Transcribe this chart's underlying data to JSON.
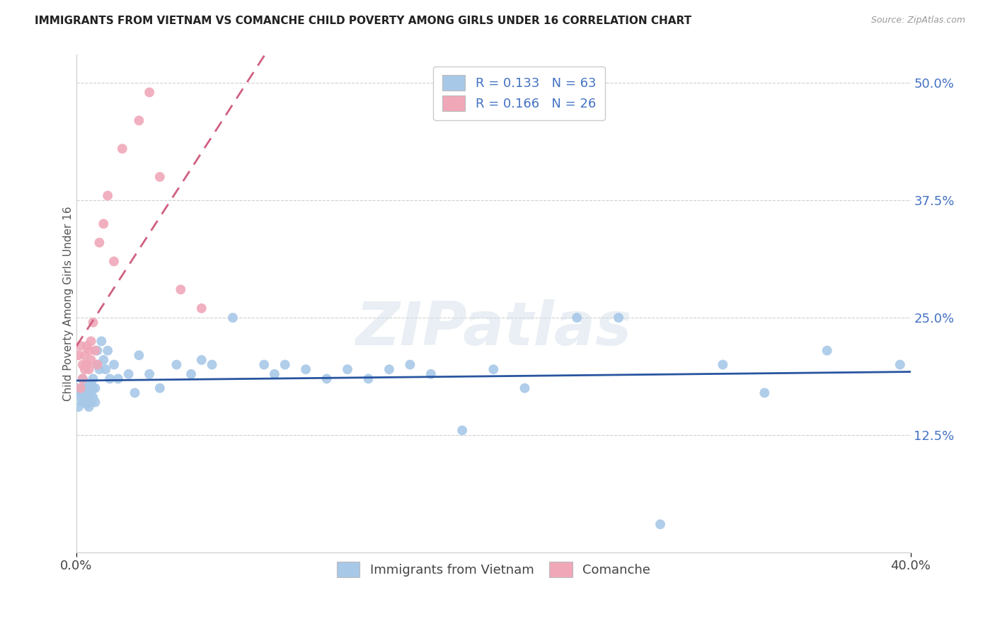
{
  "title": "IMMIGRANTS FROM VIETNAM VS COMANCHE CHILD POVERTY AMONG GIRLS UNDER 16 CORRELATION CHART",
  "source": "Source: ZipAtlas.com",
  "ylabel": "Child Poverty Among Girls Under 16",
  "ytick_labels": [
    "12.5%",
    "25.0%",
    "37.5%",
    "50.0%"
  ],
  "ytick_values": [
    0.125,
    0.25,
    0.375,
    0.5
  ],
  "xmin": 0.0,
  "xmax": 0.4,
  "ymin": 0.0,
  "ymax": 0.53,
  "legend1_label": "R = 0.133   N = 63",
  "legend2_label": "R = 0.166   N = 26",
  "legend_bottom1": "Immigrants from Vietnam",
  "legend_bottom2": "Comanche",
  "color_blue": "#a8c8e8",
  "color_pink": "#f0a8b8",
  "color_blue_line": "#2855a0",
  "color_pink_line": "#d06080",
  "color_pink_line_dashed": "#c0a0b0",
  "watermark": "ZIPatlas",
  "blue_x": [
    0.001,
    0.001,
    0.002,
    0.002,
    0.003,
    0.003,
    0.003,
    0.004,
    0.004,
    0.005,
    0.005,
    0.005,
    0.006,
    0.006,
    0.006,
    0.007,
    0.007,
    0.007,
    0.008,
    0.008,
    0.008,
    0.009,
    0.009,
    0.01,
    0.01,
    0.011,
    0.012,
    0.013,
    0.014,
    0.015,
    0.016,
    0.018,
    0.02,
    0.025,
    0.028,
    0.03,
    0.035,
    0.04,
    0.048,
    0.055,
    0.06,
    0.065,
    0.075,
    0.09,
    0.095,
    0.1,
    0.11,
    0.12,
    0.13,
    0.14,
    0.15,
    0.16,
    0.17,
    0.185,
    0.2,
    0.215,
    0.24,
    0.26,
    0.28,
    0.31,
    0.33,
    0.36,
    0.395
  ],
  "blue_y": [
    0.175,
    0.155,
    0.165,
    0.17,
    0.185,
    0.175,
    0.16,
    0.172,
    0.162,
    0.18,
    0.17,
    0.158,
    0.175,
    0.165,
    0.155,
    0.18,
    0.17,
    0.16,
    0.175,
    0.185,
    0.165,
    0.175,
    0.16,
    0.2,
    0.215,
    0.195,
    0.225,
    0.205,
    0.195,
    0.215,
    0.185,
    0.2,
    0.185,
    0.19,
    0.17,
    0.21,
    0.19,
    0.175,
    0.2,
    0.19,
    0.205,
    0.2,
    0.25,
    0.2,
    0.19,
    0.2,
    0.195,
    0.185,
    0.195,
    0.185,
    0.195,
    0.2,
    0.19,
    0.13,
    0.195,
    0.175,
    0.25,
    0.25,
    0.03,
    0.2,
    0.17,
    0.215,
    0.2
  ],
  "pink_x": [
    0.001,
    0.002,
    0.002,
    0.003,
    0.003,
    0.004,
    0.004,
    0.005,
    0.005,
    0.006,
    0.006,
    0.007,
    0.007,
    0.008,
    0.009,
    0.01,
    0.011,
    0.013,
    0.015,
    0.018,
    0.022,
    0.03,
    0.035,
    0.04,
    0.05,
    0.06
  ],
  "pink_y": [
    0.21,
    0.22,
    0.175,
    0.2,
    0.185,
    0.21,
    0.195,
    0.22,
    0.2,
    0.215,
    0.195,
    0.225,
    0.205,
    0.245,
    0.215,
    0.2,
    0.33,
    0.35,
    0.38,
    0.31,
    0.43,
    0.46,
    0.49,
    0.4,
    0.28,
    0.26
  ]
}
